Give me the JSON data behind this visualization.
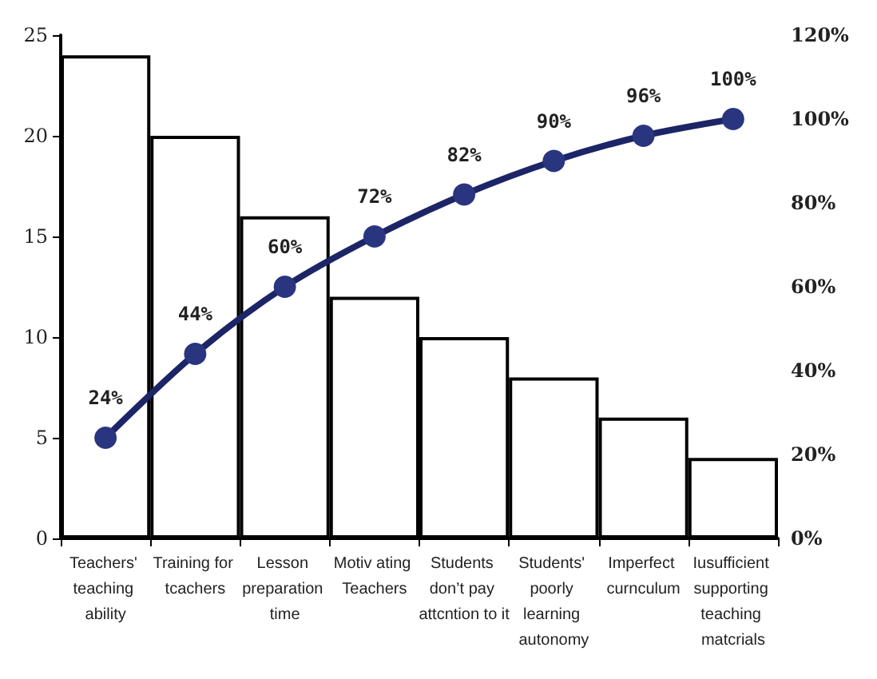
{
  "chart_data": {
    "type": "bar",
    "categories": [
      "Teachers' teaching ability",
      "Training for tcachers",
      "Lesson preparation time",
      "Motiv ating Teachers",
      "Students don’t pay attcntion to it",
      "Students' poorly learning autonomy",
      "Imperfect curnculum",
      "Iusufficient supporting teaching matcrials"
    ],
    "series": [
      {
        "color": "#ffffff",
        "values": [
          24,
          20,
          16,
          12,
          10,
          8,
          6,
          4
        ]
      },
      {
        "type": "line",
        "axis": "y2",
        "color": "#1c2566",
        "marker": "circle",
        "values": [
          24,
          44,
          60,
          72,
          82,
          90,
          96,
          100
        ],
        "value_labels": [
          "24%",
          "44%",
          "60%",
          "72%",
          "82%",
          "90%",
          "96%",
          "100%"
        ]
      }
    ],
    "ylim": [
      0,
      25
    ],
    "yticks": [
      0,
      5,
      10,
      15,
      20,
      25
    ],
    "y2lim": [
      0,
      120
    ],
    "y2ticks": [
      {
        "value": 0,
        "label": "0%"
      },
      {
        "value": 20,
        "label": "20%"
      },
      {
        "value": 40,
        "label": "40%"
      },
      {
        "value": 60,
        "label": "60%"
      },
      {
        "value": 80,
        "label": "80%"
      },
      {
        "value": 100,
        "label": "100%"
      },
      {
        "value": 120,
        "label": "120%"
      }
    ],
    "grid": false
  }
}
